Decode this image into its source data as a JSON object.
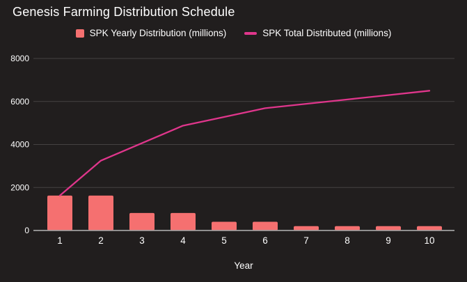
{
  "chart_data": {
    "type": "combo-bar-line",
    "title": "Genesis Farming Distribution Schedule",
    "xlabel": "Year",
    "ylabel": "",
    "categories": [
      "1",
      "2",
      "3",
      "4",
      "5",
      "6",
      "7",
      "8",
      "9",
      "10"
    ],
    "series": [
      {
        "name": "SPK Yearly Distribution (millions)",
        "type": "bar",
        "color": "#f57070",
        "values": [
          1625,
          1625,
          812.5,
          812.5,
          406.25,
          406.25,
          203.13,
          203.13,
          203.13,
          203.13
        ]
      },
      {
        "name": "SPK Total Distributed (millions)",
        "type": "line",
        "color": "#e0368c",
        "values": [
          1625,
          3250,
          4062.5,
          4875,
          5281.25,
          5687.5,
          5890.63,
          6093.75,
          6296.88,
          6500
        ]
      }
    ],
    "ylim": [
      0,
      8000
    ],
    "yticks": [
      0,
      2000,
      4000,
      6000,
      8000
    ],
    "grid": true,
    "legend_position": "top"
  },
  "colors": {
    "background": "#211e1e",
    "gridline": "#454242",
    "axis_line": "#a0a0a0",
    "tick_text": "#ffffff"
  }
}
